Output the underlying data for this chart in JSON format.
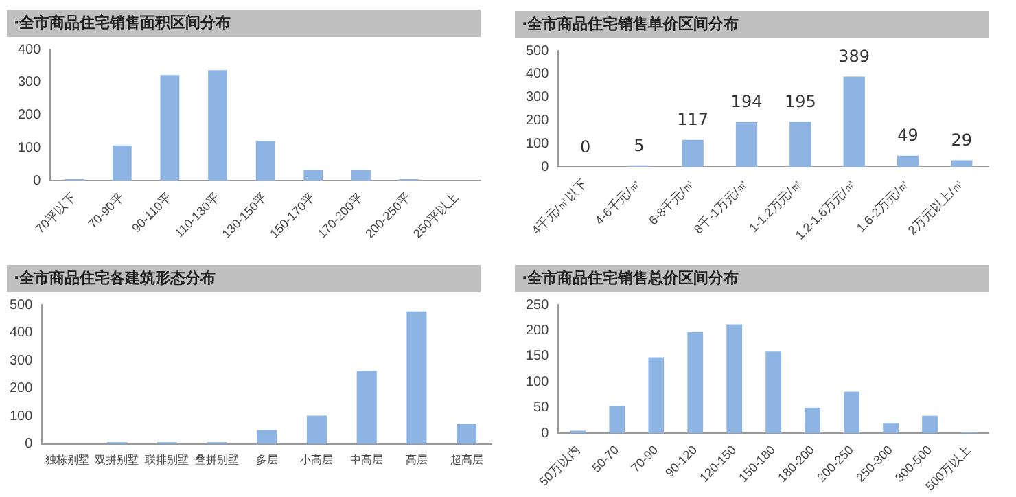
{
  "chart_data": [
    {
      "type": "bar",
      "title": "·全市商品住宅销售面积区间分布",
      "categories": [
        "70平以下",
        "70-90平",
        "90-110平",
        "110-130平",
        "130-150平",
        "150-170平",
        "170-200平",
        "200-250平",
        "250平以上"
      ],
      "values": [
        5,
        108,
        322,
        337,
        122,
        32,
        32,
        5,
        0
      ],
      "color": "#8db4e2",
      "ylim": [
        0,
        400
      ],
      "yticks": [
        0,
        100,
        200,
        300,
        400
      ],
      "grid": false,
      "legend": false
    },
    {
      "type": "bar",
      "title": "·全市商品住宅销售单价区间分布",
      "categories": [
        "4千元/㎡以下",
        "4-6千元/㎡",
        "6-8千元/㎡",
        "8千-1万元/㎡",
        "1-1.2万元/㎡",
        "1.2-1.6万元/㎡",
        "1.6-2万元/㎡",
        "2万元以上/㎡"
      ],
      "values": [
        0,
        5,
        117,
        194,
        195,
        389,
        49,
        29
      ],
      "color": "#8db4e2",
      "ylim": [
        0,
        500
      ],
      "yticks": [
        0,
        100,
        200,
        300,
        400,
        500
      ],
      "data_labels": true,
      "grid": false,
      "legend": false
    },
    {
      "type": "bar",
      "title": "·全市商品住宅各建筑形态分布",
      "categories": [
        "独栋别墅",
        "双拼别墅",
        "联排别墅",
        "叠拼别墅",
        "多层",
        "小高层",
        "中高层",
        "高层",
        "超高层"
      ],
      "values": [
        0,
        6,
        6,
        6,
        50,
        102,
        263,
        476,
        73
      ],
      "color": "#8db4e2",
      "ylim": [
        0,
        500
      ],
      "yticks": [
        0,
        100,
        200,
        300,
        400,
        500
      ],
      "grid": false,
      "legend": false
    },
    {
      "type": "bar",
      "title": "·全市商品住宅销售总价区间分布",
      "categories": [
        "50万以内",
        "50-70",
        "70-90",
        "90-120",
        "120-150",
        "150-180",
        "180-200",
        "200-250",
        "250-300",
        "300-500",
        "500万以上"
      ],
      "values": [
        5,
        53,
        148,
        197,
        212,
        159,
        50,
        81,
        20,
        34,
        2
      ],
      "color": "#8db4e2",
      "ylim": [
        0,
        250
      ],
      "yticks": [
        0,
        50,
        100,
        150,
        200,
        250
      ],
      "grid": false,
      "legend": false
    }
  ]
}
